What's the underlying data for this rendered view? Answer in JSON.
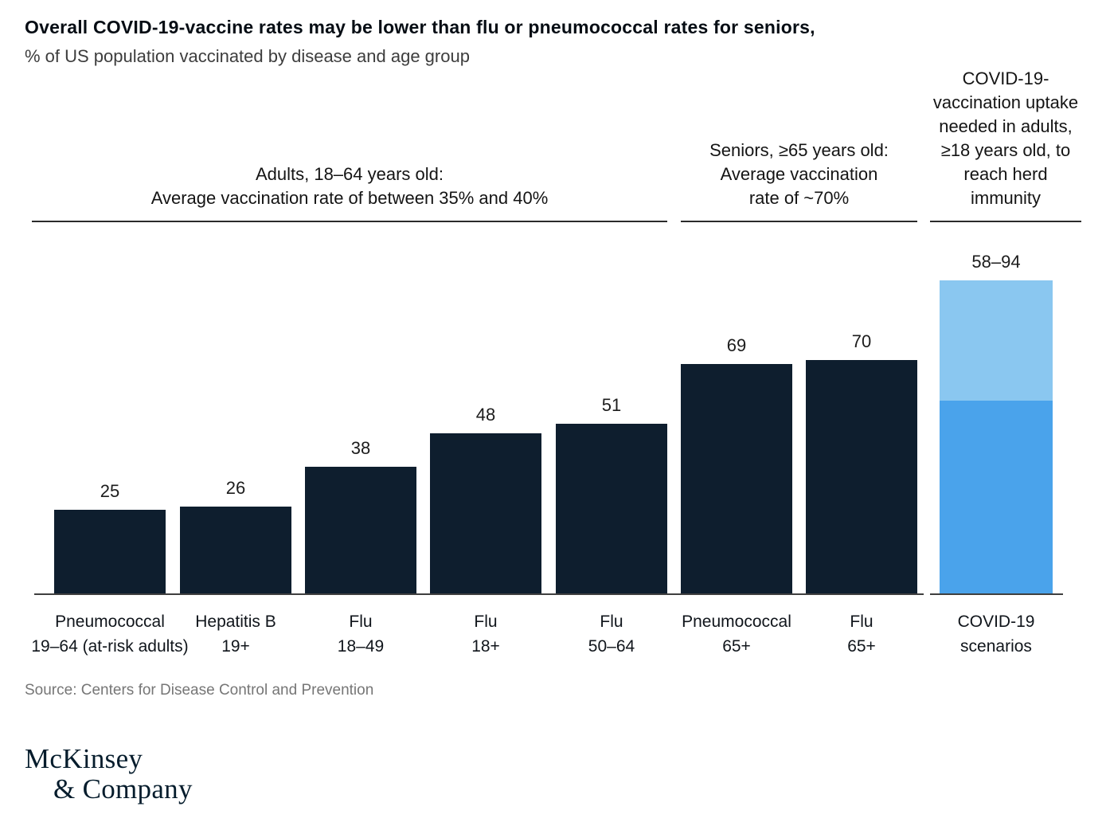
{
  "header": {
    "title": "Overall COVID-19-vaccine rates may be lower than flu or pneumococcal rates for seniors,",
    "subtitle": "% of US population vaccinated by disease and age group"
  },
  "chart_data": {
    "type": "bar",
    "title": "Overall COVID-19-vaccine rates may be lower than flu or pneumococcal rates for seniors,",
    "subtitle": "% of US population vaccinated by disease and age group",
    "ylabel": "% of US population vaccinated",
    "ylim": [
      0,
      94
    ],
    "grid": false,
    "legend": "none",
    "colors": {
      "navy_bar": "#0e1e2e",
      "covid_low_segment": "#4aa3eb",
      "covid_high_segment": "#8ac7f0"
    },
    "group_headers": [
      {
        "text": "Adults, 18–64 years old:\nAverage vaccination rate of between 35% and 40%",
        "covers_bars": [
          1,
          2,
          3,
          4,
          5
        ]
      },
      {
        "text": "Seniors, ≥65 years old:\nAverage vaccination\nrate of ~70%",
        "covers_bars": [
          6,
          7
        ]
      },
      {
        "text": "COVID-19-\nvaccination uptake\nneeded in adults,\n≥18 years old, to\nreach herd\nimmunity",
        "covers_bars": [
          8
        ]
      }
    ],
    "bars": [
      {
        "disease": "Pneumococcal",
        "age": "19–64 (at-risk adults)",
        "value": 25,
        "value_label": "25",
        "color": "#0e1e2e"
      },
      {
        "disease": "Hepatitis B",
        "age": "19+",
        "value": 26,
        "value_label": "26",
        "color": "#0e1e2e"
      },
      {
        "disease": "Flu",
        "age": "18–49",
        "value": 38,
        "value_label": "38",
        "color": "#0e1e2e"
      },
      {
        "disease": "Flu",
        "age": "18+",
        "value": 48,
        "value_label": "48",
        "color": "#0e1e2e"
      },
      {
        "disease": "Flu",
        "age": "50–64",
        "value": 51,
        "value_label": "51",
        "color": "#0e1e2e"
      },
      {
        "disease": "Pneumococcal",
        "age": "65+",
        "value": 69,
        "value_label": "69",
        "color": "#0e1e2e"
      },
      {
        "disease": "Flu",
        "age": "65+",
        "value": 70,
        "value_label": "70",
        "color": "#0e1e2e"
      },
      {
        "disease": "COVID-19",
        "age": "scenarios",
        "value": 94,
        "value_label": "58–94",
        "stack": [
          {
            "from": 0,
            "to": 58,
            "color": "#4aa3eb"
          },
          {
            "from": 58,
            "to": 94,
            "color": "#8ac7f0"
          }
        ]
      }
    ]
  },
  "source": "Source: Centers for Disease Control and Prevention",
  "logo": {
    "line1": "McKinsey",
    "line2": "& Company"
  }
}
